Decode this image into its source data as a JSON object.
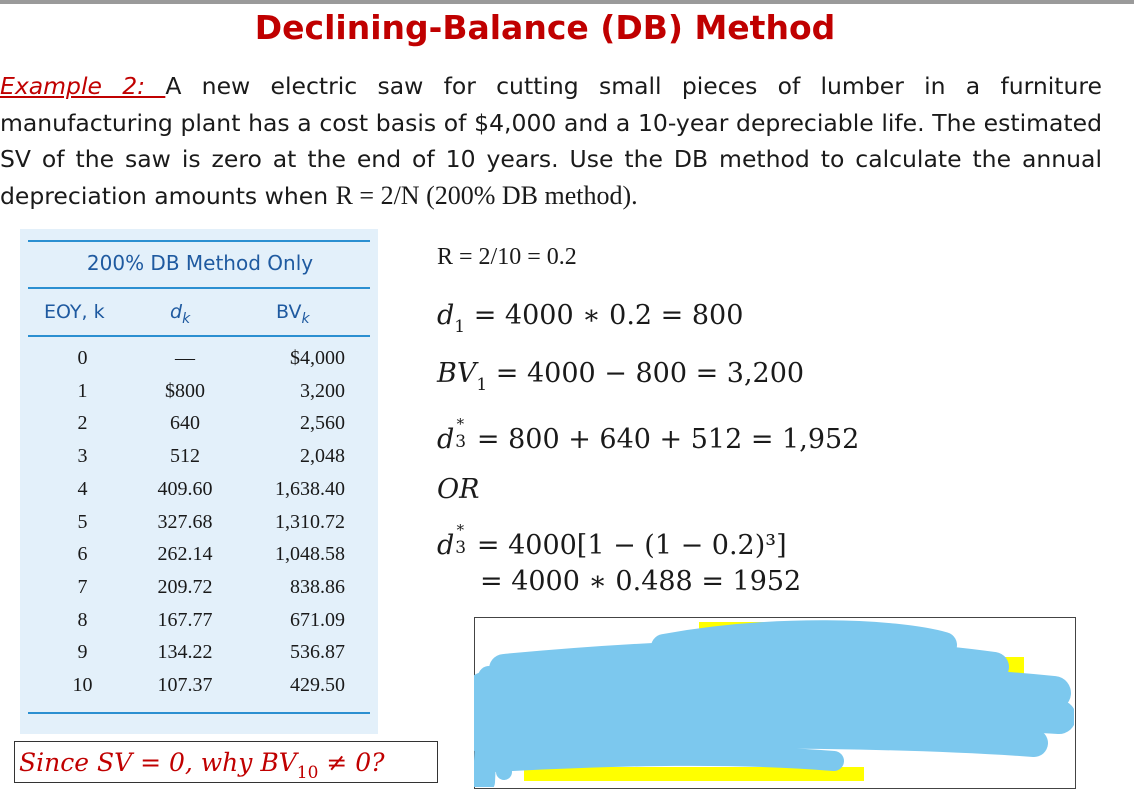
{
  "title": "Declining-Balance (DB) Method",
  "problem": {
    "label": "Example  2: ",
    "text_before": "A new electric saw for cutting small pieces of lumber in a furniture manufacturing plant has a cost basis of $4,000 and a 10-year depreciable life. The estimated SV of the saw is zero at the end of 10 years. Use the DB method to calculate the annual depreciation amounts when ",
    "formula": "R = 2/N (200% DB method)."
  },
  "table": {
    "title": "200% DB Method Only",
    "headers": {
      "k": "EOY, k",
      "d": "d",
      "d_sub": "k",
      "bv": "BV",
      "bv_sub": "k"
    },
    "rows": [
      {
        "k": "0",
        "d": "—",
        "bv": "$4,000"
      },
      {
        "k": "1",
        "d": "$800",
        "bv": "3,200"
      },
      {
        "k": "2",
        "d": "640",
        "bv": "2,560"
      },
      {
        "k": "3",
        "d": "512",
        "bv": "2,048"
      },
      {
        "k": "4",
        "d": "409.60",
        "bv": "1,638.40"
      },
      {
        "k": "5",
        "d": "327.68",
        "bv": "1,310.72"
      },
      {
        "k": "6",
        "d": "262.14",
        "bv": "1,048.58"
      },
      {
        "k": "7",
        "d": "209.72",
        "bv": "838.86"
      },
      {
        "k": "8",
        "d": "167.77",
        "bv": "671.09"
      },
      {
        "k": "9",
        "d": "134.22",
        "bv": "536.87"
      },
      {
        "k": "10",
        "d": "107.37",
        "bv": "429.50"
      }
    ]
  },
  "math": {
    "r_line": "R = 2/10 = 0.2",
    "d1": {
      "var": "d",
      "sub": "1",
      "rhs": " = 4000 ∗ 0.2 = 800"
    },
    "bv1": {
      "var": "BV",
      "sub": "1",
      "rhs": " = 4000 − 800 = 3,200"
    },
    "d3a": {
      "var": "d",
      "sub": "3",
      "sup": "∗",
      "rhs": " = 800 + 640 + 512 = 1,952"
    },
    "or": "OR",
    "d3b": {
      "var": "d",
      "sub": "3",
      "sup": "∗",
      "rhs": " = 4000[1 − (1 − 0.2)³]"
    },
    "d3b_cont": "= 4000 ∗ 0.488 = 1952"
  },
  "question": {
    "pre": "Since SV = 0, why BV",
    "sub": "10",
    "post": " ≠ 0?"
  },
  "colors": {
    "title": "#c00000",
    "table_bg": "#e3f0fa",
    "table_rule": "#2b8fd1",
    "scribble": "#7cc8ee",
    "highlight": "#ffff00"
  }
}
